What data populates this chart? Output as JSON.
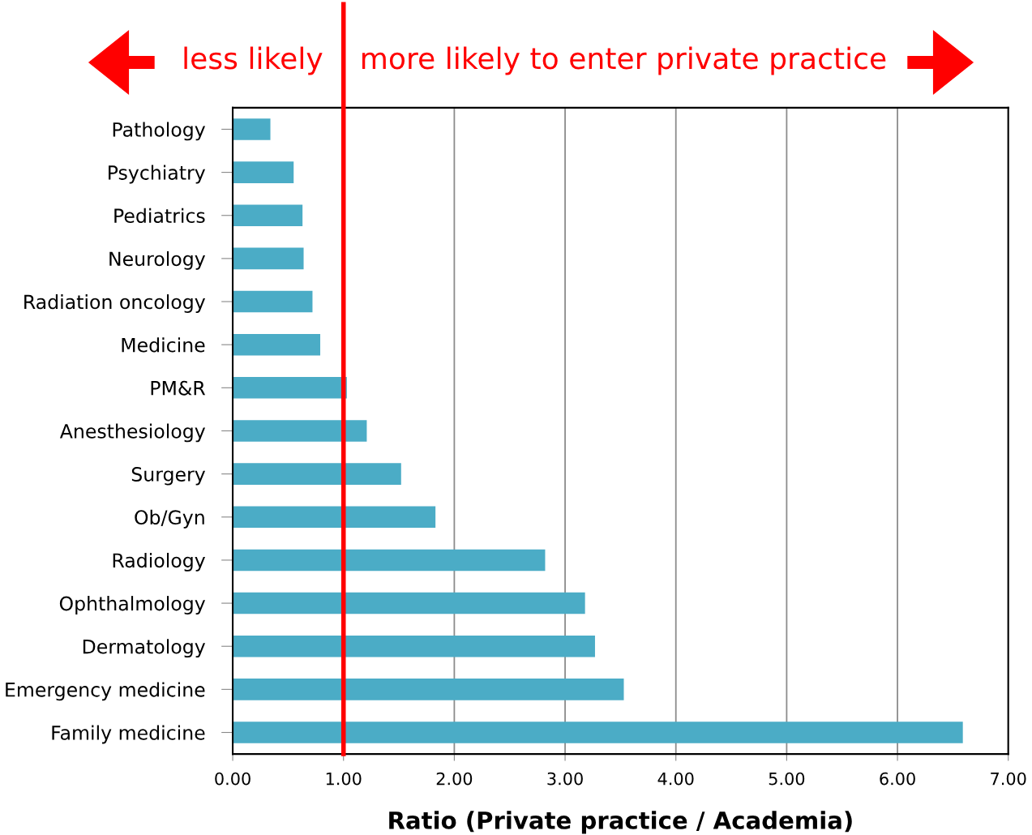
{
  "chart_data": {
    "type": "bar",
    "orientation": "horizontal",
    "xlabel": "Ratio (Private practice / Academia)",
    "categories": [
      "Pathology",
      "Psychiatry",
      "Pediatrics",
      "Neurology",
      "Radiation oncology",
      "Medicine",
      "PM&R",
      "Anesthesiology",
      "Surgery",
      "Ob/Gyn",
      "Radiology",
      "Ophthalmology",
      "Dermatology",
      "Emergency medicine",
      "Family medicine"
    ],
    "values": [
      0.34,
      0.55,
      0.63,
      0.64,
      0.72,
      0.79,
      1.03,
      1.21,
      1.52,
      1.83,
      2.82,
      3.18,
      3.27,
      3.53,
      6.59
    ],
    "color": "#4bacc6",
    "xlim": [
      0,
      7
    ],
    "xticks": [
      {
        "value": 0,
        "label": "0.00"
      },
      {
        "value": 1,
        "label": "1.00"
      },
      {
        "value": 2,
        "label": "2.00"
      },
      {
        "value": 3,
        "label": "3.00"
      },
      {
        "value": 4,
        "label": "4.00"
      },
      {
        "value": 5,
        "label": "5.00"
      },
      {
        "value": 6,
        "label": "6.00"
      },
      {
        "value": 7,
        "label": "7.00"
      }
    ],
    "grid": "x",
    "ref_lines": [
      {
        "axis": "x",
        "value": 1,
        "color": "#ff0000"
      }
    ],
    "annotations": [
      "less likely",
      "more likely to enter private practice"
    ]
  }
}
